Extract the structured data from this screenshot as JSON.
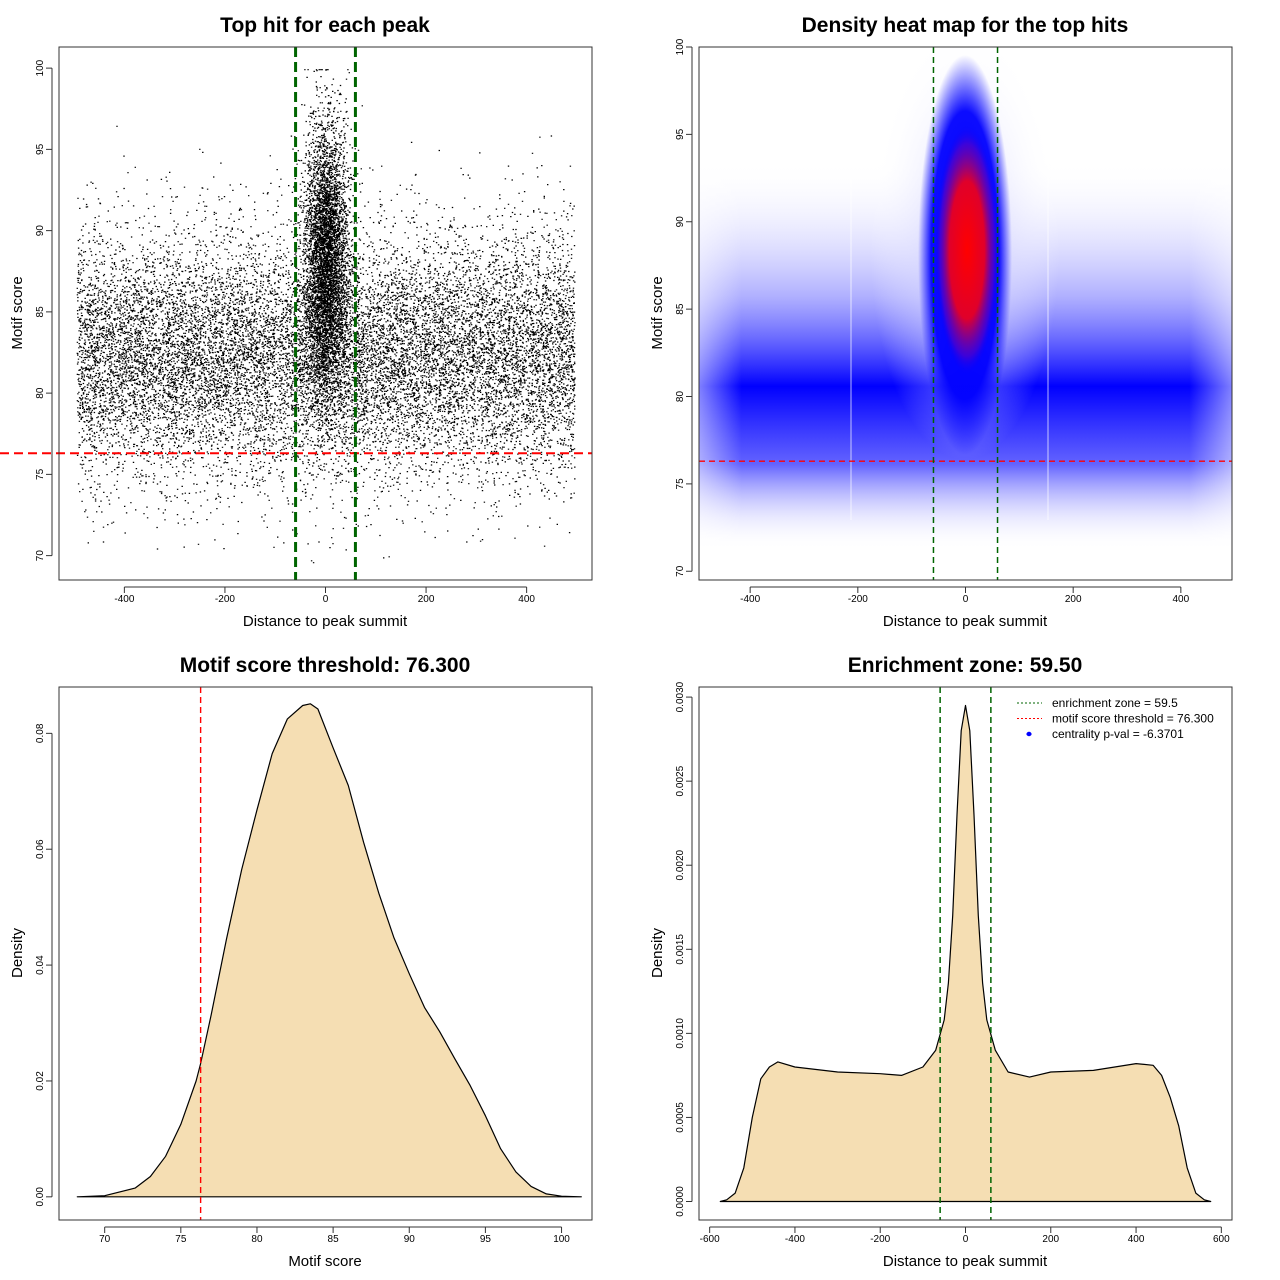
{
  "colors": {
    "threshold": "#ff0000",
    "zone": "#006400",
    "fill": "#f5deb3",
    "point": "#000000",
    "heat_low": "#ffffff",
    "heat_mid": "#0000ff",
    "heat_high": "#ff0000",
    "centrality_dot": "#0000ff"
  },
  "chart_data": [
    {
      "type": "scatter",
      "title": "Top hit for each peak",
      "xlabel": "Distance to peak summit",
      "ylabel": "Motif score",
      "xlim": [
        -530,
        530
      ],
      "ylim": [
        68.5,
        101.3
      ],
      "xticks": [
        -400,
        -200,
        0,
        200,
        400
      ],
      "yticks": [
        70,
        75,
        80,
        85,
        90,
        95,
        100
      ],
      "threshold_y": 76.3,
      "zone_x": [
        -59.5,
        59.5
      ],
      "description": "~20000 points: uniform background spread over distance -495..495 with scores ~72-98 centred ~82, plus a dense central cluster |x|<50 with scores ~80-100"
    },
    {
      "type": "heatmap",
      "title": "Density heat map for the top hits",
      "xlabel": "Distance to peak summit",
      "ylabel": "Motif score",
      "xlim": [
        -495,
        495
      ],
      "ylim": [
        69.5,
        100
      ],
      "xticks": [
        -400,
        -200,
        0,
        200,
        400
      ],
      "yticks": [
        70,
        75,
        80,
        85,
        90,
        95,
        100
      ],
      "threshold_y": 76.3,
      "zone_x": [
        -59.5,
        59.5
      ],
      "color_scale": [
        "white",
        "blue",
        "red"
      ],
      "peak": {
        "x": 0,
        "y": 88
      }
    },
    {
      "type": "area",
      "title": "Motif score threshold: 76.300",
      "xlabel": "Motif score",
      "ylabel": "Density",
      "xlim": [
        67,
        102
      ],
      "ylim": [
        -0.004,
        0.088
      ],
      "xticks": [
        70,
        75,
        80,
        85,
        90,
        95,
        100
      ],
      "yticks": [
        0.0,
        0.02,
        0.04,
        0.06,
        0.08
      ],
      "threshold_x": 76.3,
      "x": [
        68.2,
        70,
        72,
        73,
        74,
        75,
        76,
        76.3,
        77,
        78,
        79,
        80,
        81,
        82,
        83,
        83.5,
        84,
        85,
        86,
        87,
        88,
        89,
        90,
        91,
        92,
        93,
        94,
        95,
        96,
        97,
        98,
        99,
        100,
        101.3
      ],
      "y": [
        0.0,
        0.0002,
        0.0015,
        0.0035,
        0.007,
        0.0125,
        0.02,
        0.023,
        0.0315,
        0.0445,
        0.0565,
        0.0668,
        0.0765,
        0.0825,
        0.0848,
        0.0851,
        0.0842,
        0.0775,
        0.071,
        0.0612,
        0.0524,
        0.0447,
        0.0385,
        0.0327,
        0.0285,
        0.0238,
        0.0192,
        0.014,
        0.0083,
        0.0043,
        0.0018,
        0.0005,
        0.0001,
        0.0
      ]
    },
    {
      "type": "area",
      "title": "Enrichment zone: 59.50",
      "xlabel": "Distance to peak summit",
      "ylabel": "Density",
      "xlim": [
        -625,
        625
      ],
      "ylim": [
        -0.00011,
        0.00306
      ],
      "xticks": [
        -600,
        -400,
        -200,
        0,
        200,
        400,
        600
      ],
      "yticks": [
        0.0,
        0.0005,
        0.001,
        0.0015,
        0.002,
        0.0025,
        0.003
      ],
      "zone_x": [
        -59.5,
        59.5
      ],
      "x": [
        -575,
        -560,
        -540,
        -520,
        -500,
        -480,
        -460,
        -440,
        -400,
        -300,
        -200,
        -150,
        -100,
        -70,
        -50,
        -40,
        -30,
        -20,
        -10,
        0,
        10,
        20,
        30,
        40,
        50,
        70,
        100,
        150,
        200,
        300,
        400,
        440,
        460,
        480,
        500,
        520,
        540,
        560,
        575
      ],
      "y": [
        0.0,
        1e-05,
        5e-05,
        0.0002,
        0.0005,
        0.00073,
        0.0008,
        0.00083,
        0.0008,
        0.00077,
        0.00076,
        0.00075,
        0.0008,
        0.0009,
        0.00108,
        0.0013,
        0.0017,
        0.0023,
        0.0028,
        0.00295,
        0.0028,
        0.0023,
        0.0017,
        0.0013,
        0.00108,
        0.0009,
        0.00077,
        0.00074,
        0.00077,
        0.00078,
        0.00082,
        0.00081,
        0.00075,
        0.00062,
        0.00045,
        0.0002,
        5e-05,
        1e-05,
        0.0
      ],
      "legend": [
        {
          "label": "enrichment zone = 59.5",
          "color": "#006400",
          "style": "dotted-line"
        },
        {
          "label": "motif score threshold = 76.300",
          "color": "#ff0000",
          "style": "dotted-line"
        },
        {
          "label": "centrality p-val = -6.3701",
          "color": "#0000ff",
          "style": "dot"
        }
      ],
      "legend_position": "top-right"
    }
  ]
}
